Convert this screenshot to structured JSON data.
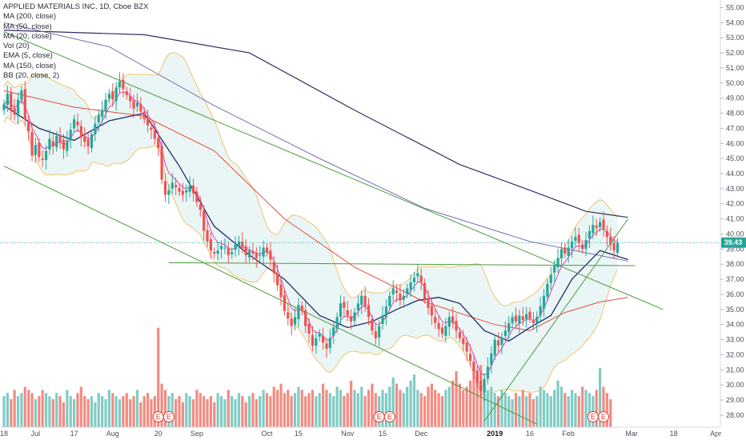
{
  "legend": {
    "title": "APPLIED MATERIALS INC, 1D, Cboe BZX",
    "indicators": [
      "MA (200, close)",
      "MA (50, close)",
      "MA (20, close)",
      "Vol (20)",
      "EMA (5, close)",
      "MA (150, close)",
      "BB (20, close, 2)"
    ]
  },
  "price_label": "39.43",
  "colors": {
    "up": "#26a69a",
    "down": "#ef5350",
    "vol_up": "#80cbc4",
    "vol_down": "#f28b82",
    "ma200": "#2f2f63",
    "ma50": "#e64a3c",
    "ma20": "#1f2a6b",
    "ema5": "#e040c0",
    "ma150": "#7a6fb5",
    "bb": "#f4c36a",
    "bb_fill": "#e0f2f1",
    "trend": "#4c9a3f",
    "price_line": "#26a69a",
    "event": "#e53935"
  },
  "event_marker": "E",
  "chart_data": {
    "type": "candlestick",
    "title": "APPLIED MATERIALS INC, 1D, Cboe BZX",
    "y_ticks": [
      "28.00",
      "29.00",
      "30.00",
      "31.00",
      "32.00",
      "33.00",
      "34.00",
      "35.00",
      "36.00",
      "37.00",
      "38.00",
      "39.00",
      "40.00",
      "41.00",
      "42.00",
      "43.00",
      "44.00",
      "45.00",
      "46.00",
      "47.00",
      "48.00",
      "49.00",
      "50.00",
      "51.00",
      "52.00",
      "53.00",
      "54.00",
      "55.00"
    ],
    "ylim": [
      27.2,
      55.5
    ],
    "x_ticks": [
      {
        "label": "18",
        "day": 0
      },
      {
        "label": "Jul",
        "day": 9
      },
      {
        "label": "17",
        "day": 20
      },
      {
        "label": "Aug",
        "day": 31
      },
      {
        "label": "20",
        "day": 44
      },
      {
        "label": "Sep",
        "day": 55
      },
      {
        "label": "Oct",
        "day": 75
      },
      {
        "label": "15",
        "day": 84
      },
      {
        "label": "Nov",
        "day": 98
      },
      {
        "label": "15",
        "day": 108
      },
      {
        "label": "Dec",
        "day": 119
      },
      {
        "label": "2019",
        "day": 140,
        "bold": true
      },
      {
        "label": "16",
        "day": 150
      },
      {
        "label": "Feb",
        "day": 161
      },
      {
        "label": "Mar",
        "day": 179
      },
      {
        "label": "18",
        "day": 191
      },
      {
        "label": "Apr",
        "day": 203
      }
    ],
    "xlim": [
      0,
      212
    ],
    "last_price": 39.43,
    "closes": [
      48.6,
      49.3,
      48.2,
      47.9,
      48.9,
      49.5,
      47.6,
      46.8,
      45.2,
      45.9,
      45.1,
      44.9,
      45.5,
      46.3,
      45.8,
      46.5,
      46.1,
      45.6,
      46.2,
      46.9,
      47.6,
      47.2,
      46.4,
      46.1,
      45.8,
      46.6,
      47.3,
      47.9,
      48.2,
      48.9,
      49.3,
      48.9,
      49.7,
      50.1,
      49.6,
      49.2,
      48.8,
      48.3,
      48.7,
      48.1,
      47.6,
      47.2,
      46.9,
      46.3,
      45.7,
      43.6,
      42.6,
      42.9,
      43.4,
      43.1,
      42.8,
      42.6,
      42.9,
      43.2,
      42.7,
      42.1,
      41.6,
      40.2,
      39.5,
      38.9,
      38.7,
      38.9,
      39.2,
      39.1,
      38.6,
      38.8,
      39.3,
      39.5,
      39.1,
      38.6,
      38.9,
      38.7,
      38.4,
      38.6,
      39.1,
      38.8,
      38.3,
      37.4,
      36.6,
      35.8,
      34.9,
      34.4,
      33.9,
      34.5,
      35.3,
      34.9,
      33.9,
      33.4,
      32.6,
      33.1,
      33.4,
      32.8,
      32.4,
      33.1,
      33.8,
      34.5,
      35.4,
      35.1,
      34.6,
      34.2,
      34.8,
      35.4,
      35.9,
      35.2,
      34.5,
      33.6,
      33.1,
      33.9,
      34.6,
      35.2,
      35.9,
      36.4,
      36.1,
      35.6,
      35.9,
      36.4,
      36.8,
      37.1,
      37.4,
      36.8,
      35.7,
      35.1,
      34.6,
      34.1,
      33.7,
      33.4,
      33.9,
      34.5,
      34.1,
      33.6,
      33.1,
      32.7,
      32.2,
      31.6,
      30.9,
      30.1,
      29.6,
      30.4,
      31.2,
      32.1,
      33.0,
      32.6,
      33.1,
      33.6,
      34.1,
      34.5,
      34.2,
      34.6,
      34.3,
      34.7,
      34.4,
      34.1,
      34.5,
      35.2,
      35.9,
      36.7,
      37.3,
      37.9,
      38.4,
      39.0,
      38.7,
      39.1,
      39.5,
      39.8,
      39.4,
      39.0,
      39.6,
      40.2,
      40.6,
      40.4,
      40.8,
      40.3,
      39.8,
      39.3,
      38.9,
      39.43
    ],
    "volume_ylim": [
      0,
      3.5
    ],
    "volumes": [
      1.0,
      1.1,
      0.9,
      1.2,
      1.0,
      1.1,
      1.3,
      1.2,
      1.1,
      0.9,
      1.0,
      1.2,
      1.1,
      1.0,
      0.9,
      1.1,
      1.0,
      0.8,
      1.2,
      1.0,
      0.9,
      1.1,
      1.3,
      1.0,
      0.9,
      1.0,
      0.8,
      1.1,
      1.0,
      0.9,
      1.2,
      1.1,
      1.0,
      0.9,
      1.0,
      1.1,
      0.9,
      1.0,
      1.2,
      0.8,
      1.0,
      1.1,
      0.9,
      1.0,
      3.2,
      1.4,
      1.2,
      1.0,
      1.1,
      0.9,
      1.0,
      0.8,
      1.1,
      1.0,
      0.9,
      1.2,
      1.1,
      1.0,
      0.9,
      1.0,
      0.8,
      1.1,
      1.0,
      0.9,
      1.2,
      1.0,
      0.9,
      1.1,
      1.0,
      0.8,
      1.0,
      1.1,
      0.9,
      1.0,
      1.2,
      1.1,
      1.0,
      1.3,
      1.2,
      1.4,
      1.1,
      1.2,
      1.0,
      1.1,
      1.3,
      1.2,
      1.0,
      1.1,
      1.2,
      1.0,
      1.1,
      1.4,
      1.2,
      1.1,
      1.0,
      1.3,
      1.2,
      1.0,
      1.1,
      1.5,
      1.2,
      1.1,
      1.3,
      1.0,
      1.2,
      1.4,
      1.1,
      1.0,
      1.2,
      1.1,
      1.3,
      1.6,
      1.4,
      1.2,
      1.1,
      1.3,
      1.5,
      1.7,
      1.2,
      1.1,
      1.0,
      1.3,
      1.4,
      1.2,
      1.1,
      1.0,
      1.2,
      1.3,
      1.5,
      1.8,
      1.4,
      1.2,
      1.3,
      1.5,
      1.9,
      1.6,
      2.0,
      1.4,
      1.2,
      1.3,
      1.1,
      1.0,
      1.2,
      1.1,
      1.0,
      0.9,
      1.1,
      1.0,
      1.2,
      1.0,
      1.1,
      0.9,
      1.0,
      1.3,
      1.2,
      1.1,
      1.0,
      1.2,
      1.5,
      1.3,
      1.1,
      1.0,
      1.2,
      1.1,
      1.0,
      1.3,
      1.2,
      1.1,
      1.0,
      1.2,
      1.9,
      1.3,
      1.1,
      0.9
    ],
    "earnings_days": [
      44,
      47,
      107,
      110,
      168,
      171
    ],
    "overlay_values_at_day": {
      "ma200": [
        [
          0,
          53.5
        ],
        [
          40,
          53.2
        ],
        [
          70,
          52.0
        ],
        [
          100,
          48.2
        ],
        [
          130,
          44.6
        ],
        [
          150,
          42.9
        ],
        [
          166,
          41.5
        ],
        [
          178,
          41.1
        ]
      ],
      "ma150": [
        [
          0,
          54.0
        ],
        [
          30,
          52.4
        ],
        [
          60,
          48.5
        ],
        [
          90,
          45.0
        ],
        [
          120,
          41.7
        ],
        [
          150,
          39.5
        ],
        [
          165,
          38.8
        ],
        [
          178,
          38.2
        ]
      ],
      "ma50": [
        [
          0,
          49.5
        ],
        [
          20,
          48.4
        ],
        [
          40,
          47.8
        ],
        [
          60,
          45.5
        ],
        [
          80,
          41.0
        ],
        [
          100,
          37.8
        ],
        [
          120,
          35.5
        ],
        [
          140,
          34.0
        ],
        [
          150,
          33.6
        ],
        [
          160,
          34.8
        ],
        [
          170,
          35.5
        ],
        [
          178,
          35.8
        ]
      ],
      "ma20": [
        [
          0,
          48.5
        ],
        [
          10,
          47.0
        ],
        [
          20,
          46.2
        ],
        [
          30,
          47.5
        ],
        [
          40,
          48.0
        ],
        [
          50,
          44.5
        ],
        [
          60,
          40.5
        ],
        [
          70,
          38.6
        ],
        [
          80,
          37.0
        ],
        [
          90,
          34.6
        ],
        [
          98,
          33.8
        ],
        [
          105,
          34.2
        ],
        [
          112,
          35.0
        ],
        [
          118,
          35.6
        ],
        [
          124,
          35.8
        ],
        [
          130,
          35.4
        ],
        [
          137,
          33.6
        ],
        [
          144,
          32.9
        ],
        [
          150,
          33.8
        ],
        [
          156,
          34.6
        ],
        [
          162,
          37.0
        ],
        [
          170,
          38.9
        ],
        [
          178,
          38.3
        ]
      ]
    },
    "trendlines": [
      {
        "from": [
          0,
          53.4
        ],
        "to": [
          188,
          35.0
        ]
      },
      {
        "from": [
          0,
          44.5
        ],
        "to": [
          152,
          27.4
        ]
      },
      {
        "from": [
          47,
          38.1
        ],
        "to": [
          180,
          37.9
        ]
      },
      {
        "from": [
          137,
          27.6
        ],
        "to": [
          178,
          41.0
        ]
      }
    ]
  }
}
